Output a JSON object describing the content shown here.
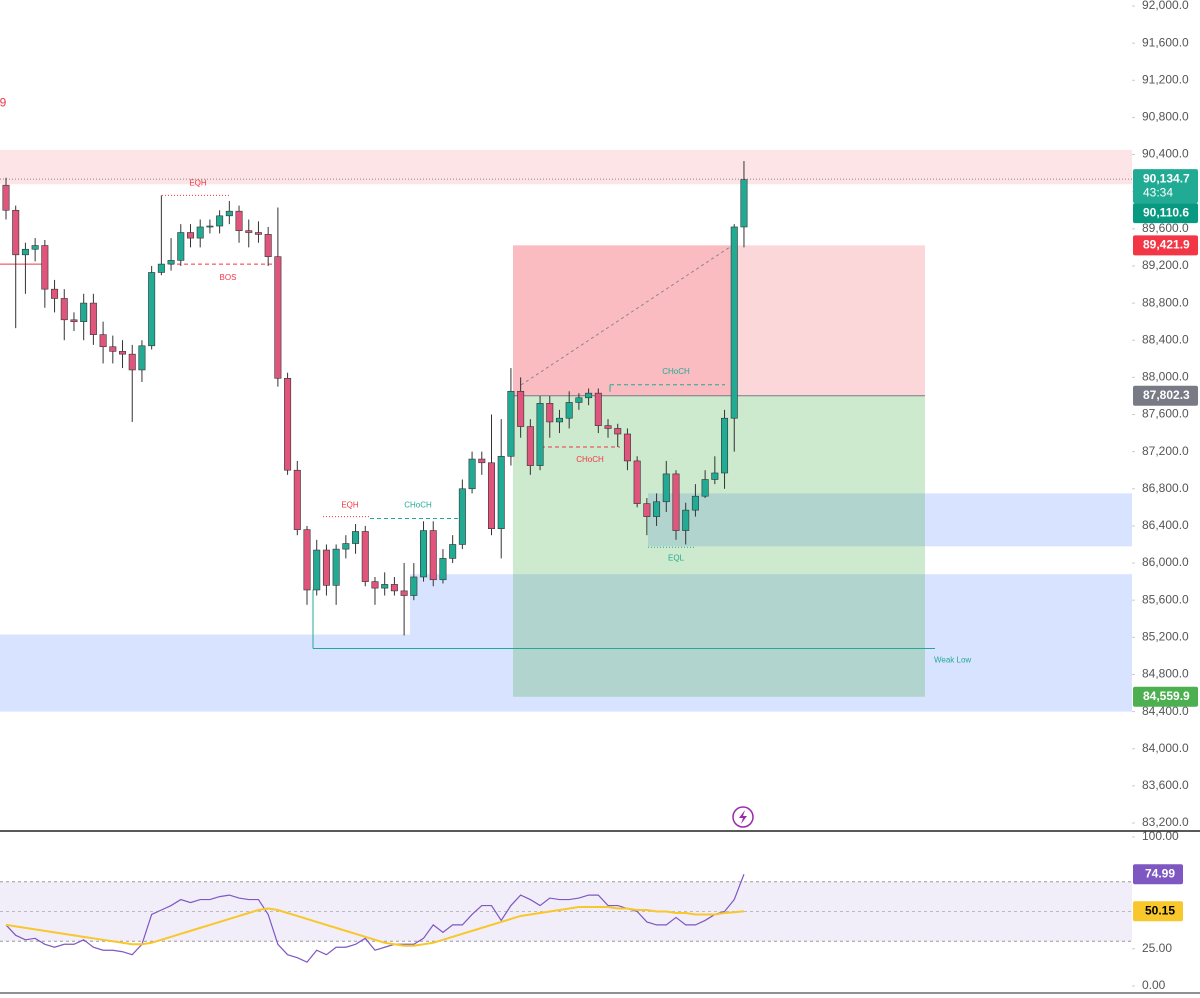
{
  "chart_data": [
    {
      "type": "candlestick",
      "ylim": [
        83200,
        92000
      ],
      "yticks": [
        {
          "value": 92000,
          "label": "92,000.0"
        },
        {
          "value": 91600,
          "label": "91,600.0"
        },
        {
          "value": 91200,
          "label": "91,200.0"
        },
        {
          "value": 90800,
          "label": "90,800.0"
        },
        {
          "value": 90400,
          "label": "90,400.0"
        },
        {
          "value": 90000,
          "label": "90,000.0"
        },
        {
          "value": 89600,
          "label": "89,600.0"
        },
        {
          "value": 89200,
          "label": "89,200.0"
        },
        {
          "value": 88800,
          "label": "88,800.0"
        },
        {
          "value": 88400,
          "label": "88,400.0"
        },
        {
          "value": 88000,
          "label": "88,000.0"
        },
        {
          "value": 87600,
          "label": "87,600.0"
        },
        {
          "value": 87200,
          "label": "87,200.0"
        },
        {
          "value": 86800,
          "label": "86,800.0"
        },
        {
          "value": 86400,
          "label": "86,400.0"
        },
        {
          "value": 86000,
          "label": "86,000.0"
        },
        {
          "value": 85600,
          "label": "85,600.0"
        },
        {
          "value": 85200,
          "label": "85,200.0"
        },
        {
          "value": 84800,
          "label": "84,800.0"
        },
        {
          "value": 84400,
          "label": "84,400.0"
        },
        {
          "value": 84000,
          "label": "84,000.0"
        },
        {
          "value": 83600,
          "label": "83,600.0"
        },
        {
          "value": 83200,
          "label": "83,200.0"
        }
      ],
      "grid": false,
      "up_color": "#22ab94",
      "down_color": "#e0557c",
      "ohlc": [
        [
          90070,
          90150,
          89700,
          89800
        ],
        [
          89800,
          89850,
          88530,
          89320
        ],
        [
          89320,
          89450,
          88900,
          89380
        ],
        [
          89380,
          89500,
          89250,
          89420
        ],
        [
          89420,
          89480,
          88750,
          88950
        ],
        [
          88950,
          89050,
          88700,
          88850
        ],
        [
          88850,
          88950,
          88400,
          88620
        ],
        [
          88620,
          88700,
          88500,
          88600
        ],
        [
          88600,
          88900,
          88400,
          88800
        ],
        [
          88800,
          88900,
          88350,
          88460
        ],
        [
          88460,
          88600,
          88150,
          88330
        ],
        [
          88330,
          88450,
          88150,
          88280
        ],
        [
          88280,
          88400,
          88100,
          88250
        ],
        [
          88250,
          88350,
          87520,
          88080
        ],
        [
          88080,
          88400,
          87950,
          88340
        ],
        [
          88340,
          89200,
          88300,
          89130
        ],
        [
          89130,
          89960,
          89100,
          89220
        ],
        [
          89220,
          89500,
          89150,
          89260
        ],
        [
          89260,
          89650,
          89200,
          89560
        ],
        [
          89560,
          89650,
          89400,
          89500
        ],
        [
          89500,
          89700,
          89400,
          89620
        ],
        [
          89620,
          89700,
          89550,
          89630
        ],
        [
          89630,
          89800,
          89550,
          89740
        ],
        [
          89740,
          89900,
          89650,
          89790
        ],
        [
          89790,
          89850,
          89450,
          89580
        ],
        [
          89580,
          89700,
          89400,
          89560
        ],
        [
          89560,
          89680,
          89450,
          89540
        ],
        [
          89540,
          89620,
          89200,
          89300
        ],
        [
          89300,
          89830,
          87900,
          87990
        ],
        [
          87990,
          88050,
          86950,
          87000
        ],
        [
          87000,
          87100,
          86300,
          86360
        ],
        [
          86360,
          86400,
          85550,
          85710
        ],
        [
          85710,
          86250,
          85650,
          86140
        ],
        [
          86140,
          86200,
          85650,
          85760
        ],
        [
          85760,
          86200,
          85550,
          86150
        ],
        [
          86150,
          86300,
          86050,
          86210
        ],
        [
          86210,
          86420,
          86100,
          86340
        ],
        [
          86340,
          86400,
          85750,
          85800
        ],
        [
          85800,
          85850,
          85550,
          85730
        ],
        [
          85730,
          85900,
          85650,
          85770
        ],
        [
          85770,
          85850,
          85650,
          85700
        ],
        [
          85700,
          86000,
          85220,
          85650
        ],
        [
          85650,
          86000,
          85600,
          85850
        ],
        [
          85850,
          86450,
          85800,
          86350
        ],
        [
          86350,
          86450,
          85750,
          85820
        ],
        [
          85820,
          86150,
          85780,
          86050
        ],
        [
          86050,
          86300,
          86000,
          86200
        ],
        [
          86200,
          86900,
          86150,
          86800
        ],
        [
          86800,
          87200,
          86750,
          87120
        ],
        [
          87120,
          87200,
          86950,
          87080
        ],
        [
          87080,
          87600,
          86300,
          86370
        ],
        [
          86370,
          87550,
          86050,
          87150
        ],
        [
          87150,
          88100,
          87050,
          87850
        ],
        [
          87850,
          88000,
          87350,
          87470
        ],
        [
          87470,
          87550,
          86950,
          87050
        ],
        [
          87050,
          87800,
          87000,
          87720
        ],
        [
          87720,
          87800,
          87350,
          87520
        ],
        [
          87520,
          87650,
          87400,
          87560
        ],
        [
          87560,
          87850,
          87450,
          87730
        ],
        [
          87730,
          87830,
          87650,
          87780
        ],
        [
          87780,
          87880,
          87700,
          87830
        ],
        [
          87830,
          87880,
          87400,
          87480
        ],
        [
          87480,
          87550,
          87350,
          87450
        ],
        [
          87450,
          87500,
          87250,
          87390
        ],
        [
          87390,
          87450,
          87000,
          87100
        ],
        [
          87100,
          87150,
          86600,
          86640
        ],
        [
          86640,
          86700,
          86300,
          86500
        ],
        [
          86500,
          86750,
          86400,
          86660
        ],
        [
          86660,
          87100,
          86550,
          86960
        ],
        [
          86960,
          87000,
          86250,
          86350
        ],
        [
          86350,
          86650,
          86200,
          86570
        ],
        [
          86570,
          86850,
          86500,
          86720
        ],
        [
          86720,
          87000,
          86700,
          86900
        ],
        [
          86900,
          87150,
          86850,
          86970
        ],
        [
          86970,
          87650,
          86800,
          87560
        ],
        [
          87560,
          89650,
          87200,
          89620
        ],
        [
          89620,
          90330,
          89400,
          90130
        ]
      ],
      "zones": [
        {
          "top": 90450,
          "bottom": 90080,
          "color": "rgba(242,54,69,0.13)"
        },
        {
          "top": 86750,
          "bottom": 86180,
          "color": "rgba(41,98,255,0.18)"
        },
        {
          "top": 85880,
          "bottom": 85230,
          "color": "rgba(41,98,255,0.18)"
        },
        {
          "top": 85230,
          "bottom": 84400,
          "color": "rgba(41,98,255,0.18)"
        }
      ],
      "annotations": [
        {
          "text": "9",
          "price": 90950,
          "color": "#f23645"
        },
        {
          "text": "EQH",
          "price": 89960,
          "color": "#f23645"
        },
        {
          "text": "BOS",
          "price": 89220,
          "color": "#f23645"
        },
        {
          "text": "EQH",
          "price": 86500,
          "color": "#f23645"
        },
        {
          "text": "CHoCH",
          "price": 86480,
          "color": "#22ab94"
        },
        {
          "text": "CHoCH",
          "price": 87250,
          "color": "#f23645"
        },
        {
          "text": "CHoCH",
          "price": 87920,
          "color": "#22ab94"
        },
        {
          "text": "EQL",
          "price": 86170,
          "color": "#22ab94"
        },
        {
          "text": "Weak Low",
          "price": 85080,
          "color": "#22ab94"
        }
      ],
      "price_labels": [
        {
          "value": 90134.7,
          "label": "90,134.7",
          "color": "#22ab94"
        },
        {
          "value": 90110.6,
          "label": "90,110.6",
          "color": "#089981"
        },
        {
          "value": 89421.9,
          "label": "89,421.9",
          "color": "#f23645"
        },
        {
          "value": 87802.3,
          "label": "87,802.3",
          "color": "#787b86"
        },
        {
          "value": 84559.9,
          "label": "84,559.9",
          "color": "#4caf50"
        }
      ],
      "countdown": "43:34"
    },
    {
      "type": "line",
      "ylim": [
        0,
        100
      ],
      "yticks": [
        {
          "value": 100,
          "label": "100.00"
        },
        {
          "value": 25,
          "label": "25.00"
        },
        {
          "value": 0,
          "label": "0.00"
        }
      ],
      "bands": [
        30,
        70
      ],
      "midline": 50,
      "band_color": "rgba(126,87,194,0.1)",
      "series": [
        {
          "color": "#7e57c2",
          "label_text_color": "#ffffff",
          "values": [
            41,
            34,
            31,
            32,
            28,
            26,
            28,
            28,
            31,
            26,
            24,
            24,
            23,
            21,
            28,
            48,
            51,
            54,
            58,
            56,
            58,
            58,
            60,
            61,
            59,
            58,
            58,
            48,
            28,
            21,
            19,
            16,
            24,
            21,
            26,
            26,
            28,
            32,
            24,
            26,
            28,
            28,
            28,
            32,
            41,
            36,
            41,
            41,
            48,
            54,
            54,
            44,
            54,
            61,
            58,
            54,
            59,
            58,
            58,
            59,
            61,
            61,
            54,
            54,
            52,
            50,
            43,
            41,
            41,
            46,
            41,
            41,
            44,
            48,
            50,
            58,
            74.99
          ]
        },
        {
          "color": "#f7c72b",
          "label_text_color": "#000000",
          "values": [
            41,
            40,
            39,
            38,
            37,
            36,
            35,
            34,
            33,
            32,
            31,
            30,
            29,
            28,
            28,
            29,
            31,
            33,
            35,
            37,
            39,
            41,
            43,
            45,
            47,
            49,
            51,
            52,
            51,
            49,
            47,
            45,
            43,
            41,
            39,
            37,
            35,
            33,
            31,
            29,
            28,
            27,
            27,
            28,
            29,
            31,
            33,
            35,
            37,
            39,
            41,
            43,
            45,
            47,
            48,
            49,
            50,
            51,
            52,
            53,
            53,
            53,
            53,
            52,
            52,
            51,
            51,
            50,
            50,
            49,
            49,
            48,
            48,
            48,
            49,
            49.5,
            50.15
          ]
        }
      ]
    }
  ]
}
